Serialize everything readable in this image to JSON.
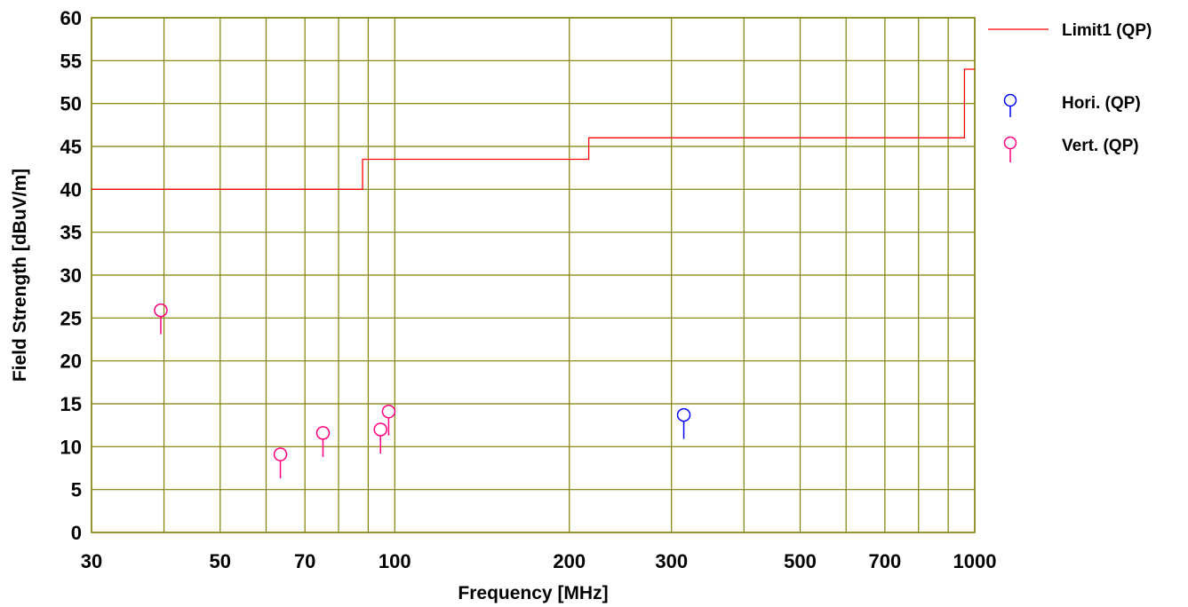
{
  "chart_data": {
    "type": "scatter",
    "xlabel": "Frequency [MHz]",
    "ylabel": "Field Strength [dBuV/m]",
    "x_scale": "log",
    "xlim": [
      30,
      1000
    ],
    "ylim": [
      0,
      60
    ],
    "grid": true,
    "x_ticks": [
      30,
      40,
      50,
      60,
      70,
      80,
      90,
      100,
      200,
      300,
      400,
      500,
      600,
      700,
      800,
      900,
      1000
    ],
    "x_tick_labels": [
      "30",
      "50",
      "70",
      "100",
      "200",
      "300",
      "500",
      "700",
      "1000"
    ],
    "y_tick_labels": [
      "0",
      "5",
      "10",
      "15",
      "20",
      "25",
      "30",
      "35",
      "40",
      "45",
      "50",
      "55",
      "60"
    ],
    "legend_position": "right",
    "colors": {
      "grid": "#7f7f00",
      "limit": "#ff0000",
      "hori": "#0000ff",
      "vert": "#ff0080"
    },
    "limit": {
      "name": "Limit1 (QP)",
      "steps": [
        {
          "x": [
            30,
            88
          ],
          "y": 40
        },
        {
          "x": [
            88,
            216
          ],
          "y": 43.5
        },
        {
          "x": [
            216,
            960
          ],
          "y": 46
        },
        {
          "x": [
            960,
            1000
          ],
          "y": 54
        }
      ]
    },
    "series": [
      {
        "name": "Hori. (QP)",
        "points": [
          {
            "x": 315,
            "y": 13.7
          }
        ]
      },
      {
        "name": "Vert. (QP)",
        "points": [
          {
            "x": 39.5,
            "y": 25.9
          },
          {
            "x": 63.5,
            "y": 9.1
          },
          {
            "x": 75.2,
            "y": 11.6
          },
          {
            "x": 94.5,
            "y": 12.0
          },
          {
            "x": 97.6,
            "y": 14.1
          }
        ]
      }
    ]
  }
}
